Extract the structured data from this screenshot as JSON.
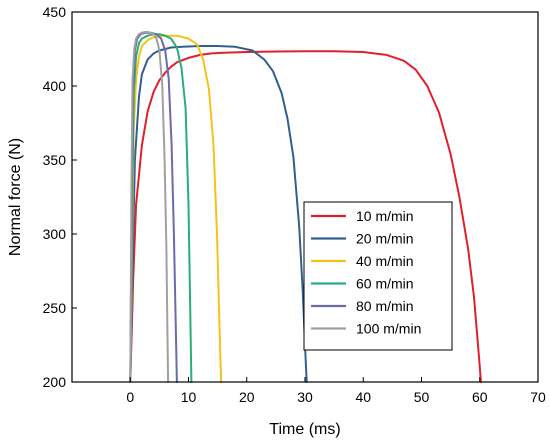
{
  "chart_data": {
    "type": "line",
    "title": "",
    "xlabel": "Time (ms)",
    "ylabel": "Normal force (N)",
    "xlim": [
      -10,
      70
    ],
    "ylim": [
      200,
      450
    ],
    "xticks": [
      0,
      10,
      20,
      30,
      40,
      50,
      60,
      70
    ],
    "yticks": [
      200,
      250,
      300,
      350,
      400,
      450
    ],
    "grid": false,
    "legend_position": "right-center",
    "series": [
      {
        "name": "10 m/min",
        "color": "#e0202a",
        "x": [
          0,
          0.5,
          1,
          2,
          3,
          4,
          5,
          6,
          7,
          8,
          10,
          12,
          14,
          16,
          20,
          25,
          30,
          35,
          40,
          44,
          47,
          49,
          51,
          53,
          55,
          56.5,
          58,
          59,
          59.6,
          60,
          60.2
        ],
        "y": [
          200,
          270,
          320,
          360,
          383,
          396,
          404,
          409,
          413,
          416,
          419,
          421,
          422,
          422.5,
          423,
          423.3,
          423.5,
          423.5,
          423,
          421,
          417,
          411,
          400,
          382,
          354,
          325,
          290,
          258,
          230,
          210,
          200
        ]
      },
      {
        "name": "20 m/min",
        "color": "#335f8f",
        "x": [
          0,
          0.4,
          0.8,
          1.5,
          2,
          3,
          4,
          5,
          6,
          7,
          9,
          12,
          15,
          18,
          21,
          23,
          24.5,
          26,
          27,
          28,
          29,
          29.6,
          30,
          30.3
        ],
        "y": [
          200,
          280,
          350,
          393,
          408,
          418,
          422,
          424,
          425,
          426,
          426.5,
          427,
          427,
          426.5,
          424,
          418,
          410,
          395,
          378,
          352,
          305,
          262,
          225,
          200
        ]
      },
      {
        "name": "40 m/min",
        "color": "#f2c416",
        "x": [
          0,
          0.3,
          0.6,
          1,
          1.5,
          2,
          3,
          4,
          6,
          8,
          10,
          11.5,
          12.5,
          13.5,
          14.3,
          14.9,
          15.3,
          15.6
        ],
        "y": [
          200,
          290,
          370,
          405,
          420,
          427,
          431,
          433,
          434,
          434,
          432,
          428,
          418,
          398,
          360,
          300,
          240,
          200
        ]
      },
      {
        "name": "60 m/min",
        "color": "#2aae78",
        "x": [
          0,
          0.3,
          0.6,
          1,
          1.5,
          2,
          3,
          4,
          5,
          6,
          7,
          8,
          8.8,
          9.5,
          10,
          10.3,
          10.5
        ],
        "y": [
          200,
          310,
          395,
          420,
          429,
          432,
          434,
          435,
          435,
          434,
          432,
          426,
          412,
          385,
          320,
          250,
          200
        ]
      },
      {
        "name": "80 m/min",
        "color": "#6a6aae",
        "x": [
          0,
          0.25,
          0.5,
          0.8,
          1.2,
          1.8,
          2.5,
          3.5,
          4.5,
          5.3,
          6,
          6.6,
          7.1,
          7.5,
          7.8,
          8
        ],
        "y": [
          200,
          320,
          400,
          424,
          432,
          435,
          436,
          436,
          435,
          432,
          424,
          405,
          360,
          300,
          240,
          200
        ]
      },
      {
        "name": "100 m/min",
        "color": "#a0a0a0",
        "x": [
          0,
          0.2,
          0.4,
          0.7,
          1,
          1.5,
          2,
          2.5,
          3,
          3.5,
          4,
          4.5,
          5,
          5.5,
          5.9,
          6.2,
          6.4,
          6.5
        ],
        "y": [
          200,
          330,
          405,
          425,
          432,
          435,
          436,
          436.5,
          436.5,
          436,
          435,
          432,
          424,
          400,
          350,
          290,
          230,
          200
        ]
      }
    ]
  }
}
